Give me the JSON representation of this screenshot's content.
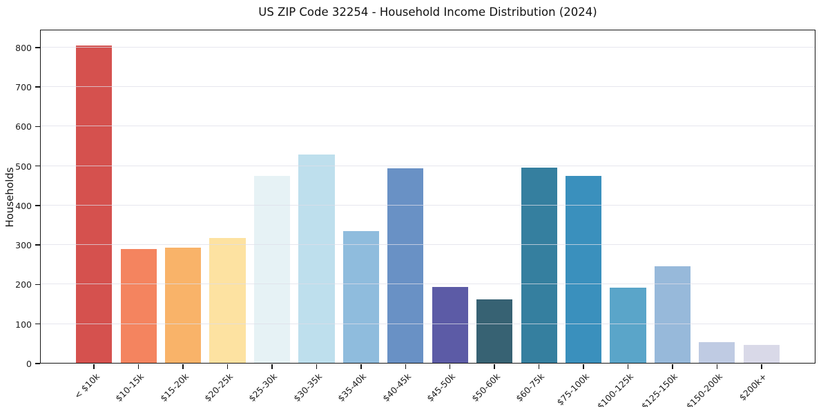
{
  "chart_data": {
    "type": "bar",
    "title": "US ZIP Code 32254 - Household Income Distribution (2024)",
    "xlabel": "",
    "ylabel": "Households",
    "ylim": [
      0,
      845
    ],
    "yticks": [
      0,
      100,
      200,
      300,
      400,
      500,
      600,
      700,
      800
    ],
    "grid": true,
    "grid_axis": "y",
    "legend": "none",
    "categories": [
      "< $10k",
      "$10-15k",
      "$15-20k",
      "$20-25k",
      "$25-30k",
      "$30-35k",
      "$35-40k",
      "$40-45k",
      "$45-50k",
      "$50-60k",
      "$60-75k",
      "$75-100k",
      "$100-125k",
      "$125-150k",
      "$150-200k",
      "$200k+"
    ],
    "values": [
      804,
      289,
      294,
      318,
      475,
      529,
      335,
      494,
      193,
      163,
      496,
      475,
      192,
      246,
      55,
      48
    ],
    "bar_colors": [
      "#d5514e",
      "#f4845f",
      "#f9b369",
      "#fde2a1",
      "#e6f2f5",
      "#bedfed",
      "#8fbcdd",
      "#6991c5",
      "#5c5ba6",
      "#376273",
      "#357f9f",
      "#3a90bd",
      "#5aa5c9",
      "#97b9da",
      "#bfcbe3",
      "#d9d9e8"
    ]
  },
  "colors": {
    "background": "#ffffff",
    "gridline": "#dedee8",
    "spine": "#141414",
    "text": "#1c1c1c"
  }
}
